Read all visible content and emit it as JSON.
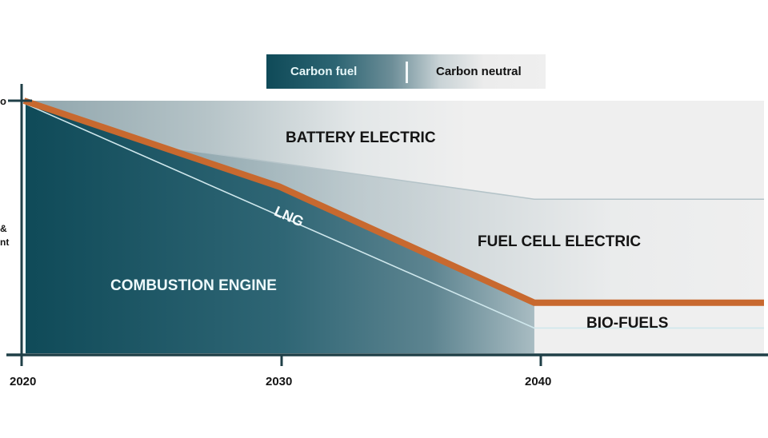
{
  "legend": {
    "carbon_fuel": "Carbon fuel",
    "carbon_neutral": "Carbon neutral"
  },
  "y_axis_cut_text": {
    "top": "o",
    "middle_line1": "&",
    "middle_line2": "nt"
  },
  "colors": {
    "dark_teal": "#0f4a58",
    "orange": "#c8692f",
    "light_bg": "#efefef",
    "axis": "#1f3f47"
  },
  "chart_data": {
    "type": "area",
    "title": "",
    "xlabel": "",
    "ylabel": "",
    "x_ticks": [
      "2020",
      "2030",
      "2040"
    ],
    "x_range": [
      2020,
      2049
    ],
    "y_range": [
      0,
      100
    ],
    "grid": false,
    "legend_position": "top-center",
    "legend": [
      "Carbon fuel",
      "Carbon neutral"
    ],
    "boundaries": [
      {
        "name": "carbon-fuel-boundary",
        "color": "orange",
        "points": [
          [
            2020,
            100
          ],
          [
            2030,
            66
          ],
          [
            2040,
            20
          ],
          [
            2049,
            20
          ]
        ]
      },
      {
        "name": "combustion-engine-boundary",
        "color": "white",
        "points": [
          [
            2020,
            99
          ],
          [
            2040,
            10
          ],
          [
            2049,
            10
          ]
        ]
      },
      {
        "name": "battery-electric-boundary",
        "color": "grey",
        "points": [
          [
            2025.3,
            82
          ],
          [
            2040,
            61
          ],
          [
            2049,
            61
          ]
        ]
      }
    ],
    "regions": [
      {
        "label": "BATTERY  ELECTRIC"
      },
      {
        "label": "FUEL CELL ELECTRIC"
      },
      {
        "label": "BIO-FUELS"
      },
      {
        "label": "COMBUSTION ENGINE"
      },
      {
        "label": "LNG"
      }
    ]
  }
}
